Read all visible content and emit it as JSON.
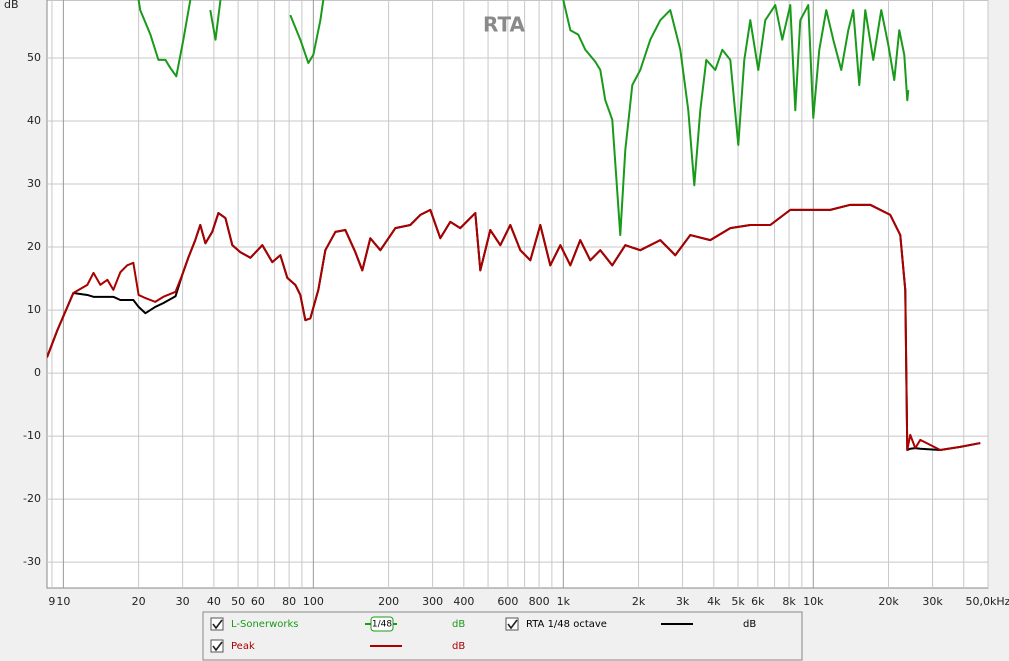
{
  "chart_data": {
    "type": "line",
    "title": "RTA",
    "ylabel": "dB",
    "xscale": "log",
    "grid": true,
    "xlim": [
      8.6,
      50000
    ],
    "ylim": [
      -34.1,
      59.2
    ],
    "yticks": [
      -30,
      -20,
      -10,
      0,
      10,
      20,
      30,
      40,
      50
    ],
    "xticks": [
      9,
      10,
      20,
      30,
      40,
      50,
      60,
      80,
      100,
      200,
      300,
      400,
      600,
      800,
      {
        "value": 1000,
        "label": "1k"
      },
      {
        "value": 2000,
        "label": "2k"
      },
      {
        "value": 3000,
        "label": "3k"
      },
      {
        "value": 4000,
        "label": "4k"
      },
      {
        "value": 5000,
        "label": "5k"
      },
      {
        "value": 6000,
        "label": "6k"
      },
      {
        "value": 8000,
        "label": "8k"
      },
      {
        "value": 10000,
        "label": "10k"
      },
      {
        "value": 20000,
        "label": "20k"
      },
      {
        "value": 30000,
        "label": "30k"
      },
      {
        "value": 50000,
        "label": "50,0kHz"
      }
    ],
    "xgrid_minor": [
      70,
      90,
      500,
      700,
      900,
      7000,
      9000,
      40000
    ],
    "series": [
      {
        "name": "L-Sonerworks",
        "color": "#1a9a1a",
        "smoothing": "1/48",
        "unit": "dB",
        "x": [
          20,
          20.3,
          22.3,
          24,
          25.6,
          26.8,
          28.3,
          30.2,
          32.2,
          36,
          38.7,
          40.6,
          42.5,
          60,
          80.9,
          88.7,
          95.5,
          100,
          106.7,
          109.6,
          500,
          1000,
          1067,
          1148,
          1225,
          1343,
          1406,
          1472,
          1570,
          1690,
          1770,
          1888,
          2032,
          2228,
          2443,
          2679,
          2938,
          3162,
          3342,
          3532,
          3733,
          4055,
          4325,
          4656,
          5012,
          5297,
          5598,
          6026,
          6427,
          7047,
          7516,
          8091,
          8472,
          8872,
          9550,
          10000,
          10568,
          11272,
          12023,
          12942,
          13804,
          14454,
          15276,
          16144,
          17378,
          18707,
          19953,
          21086,
          22080,
          23121,
          23768,
          24000
        ],
        "values": [
          59.2,
          57.6,
          53.7,
          49.7,
          49.7,
          48.4,
          47.1,
          52.9,
          59.2,
          null,
          57.6,
          52.9,
          59.2,
          null,
          56.8,
          52.9,
          49.2,
          50.5,
          56,
          59.2,
          null,
          59.2,
          54.4,
          53.7,
          51.3,
          49.4,
          48.1,
          43.3,
          40.2,
          21.9,
          35.4,
          45.7,
          48.1,
          52.9,
          56,
          57.6,
          51.3,
          41.7,
          29.8,
          41.7,
          49.7,
          48.1,
          51.3,
          49.7,
          36.2,
          49.7,
          56,
          48.1,
          56,
          58.4,
          52.9,
          58.4,
          41.7,
          56,
          58.4,
          40.5,
          51.3,
          57.6,
          52.9,
          48.1,
          54.4,
          57.6,
          45.7,
          57.6,
          49.7,
          57.6,
          52.1,
          46.5,
          54.4,
          50.5,
          43.3,
          44.9
        ]
      },
      {
        "name": "RTA 1/48 octave",
        "color": "#000000",
        "unit": "dB",
        "x": [
          8.6,
          9.46,
          10.96,
          12.47,
          13.2,
          14.06,
          15,
          15.85,
          16.9,
          18,
          19.05,
          20,
          21.3,
          23.3,
          25.1,
          28.1,
          29.9,
          31.6,
          33.7,
          35.3,
          37,
          39.4,
          41.7,
          44.5,
          47.4,
          51,
          56,
          62.5,
          68.5,
          73.8,
          78.7,
          84.7,
          88.7,
          92.9,
          97.3,
          104.7,
          111.7,
          122.5,
          134.3,
          147.2,
          157,
          169,
          185.4,
          212.8,
          244.3,
          267.9,
          293.8,
          322,
          353,
          387,
          444.6,
          465.6,
          510.5,
          559.8,
          613.8,
          673,
          738,
          809,
          887,
          973,
          1067,
          1169,
          1282,
          1406,
          1570,
          1770,
          2032,
          2443,
          2805,
          3221,
          3873,
          4656,
          5598,
          6730,
          8091,
          9727,
          11695,
          14060,
          16904,
          20324,
          22284,
          23335,
          23768,
          24434,
          25586,
          26792,
          32211,
          38726,
          46559
        ],
        "values": [
          2.5,
          6.8,
          12.7,
          12.4,
          12.1,
          12.1,
          12.1,
          12.1,
          11.6,
          11.6,
          11.6,
          10.5,
          9.5,
          10.5,
          11.1,
          12.2,
          15.6,
          18.3,
          21.1,
          23.5,
          20.6,
          22.4,
          25.4,
          24.6,
          20.3,
          19.2,
          18.3,
          20.3,
          17.6,
          18.7,
          15.1,
          14,
          12.4,
          8.4,
          8.7,
          13.2,
          19.5,
          22.4,
          22.7,
          19.2,
          16.3,
          21.4,
          19.5,
          23,
          23.5,
          25.1,
          25.9,
          21.4,
          24,
          23,
          25.4,
          16.3,
          22.7,
          20.3,
          23.5,
          19.5,
          17.9,
          23.5,
          17.1,
          20.3,
          17.1,
          21.1,
          17.9,
          19.5,
          17.1,
          20.3,
          19.5,
          21.1,
          18.7,
          21.9,
          21.1,
          23,
          23.5,
          23.5,
          25.9,
          25.9,
          25.9,
          26.7,
          26.7,
          25.1,
          21.9,
          13.2,
          -12.2,
          -12,
          -11.9,
          -12,
          -12.2,
          -11.7,
          -11.1
        ]
      },
      {
        "name": "Peak",
        "color": "#aa0000",
        "unit": "dB",
        "x": [
          8.6,
          9.46,
          10.96,
          12.47,
          13.2,
          14.06,
          15,
          15.85,
          16.9,
          18,
          19.05,
          20,
          21.3,
          23.3,
          25.1,
          28.1,
          29.9,
          31.6,
          33.7,
          35.3,
          37,
          39.4,
          41.7,
          44.5,
          47.4,
          51,
          56,
          62.5,
          68.5,
          73.8,
          78.7,
          84.7,
          88.7,
          92.9,
          97.3,
          104.7,
          111.7,
          122.5,
          134.3,
          147.2,
          157,
          169,
          185.4,
          212.8,
          244.3,
          267.9,
          293.8,
          322,
          353,
          387,
          444.6,
          465.6,
          510.5,
          559.8,
          613.8,
          673,
          738,
          809,
          887,
          973,
          1067,
          1169,
          1282,
          1406,
          1570,
          1770,
          2032,
          2443,
          2805,
          3221,
          3873,
          4656,
          5598,
          6730,
          8091,
          9727,
          11695,
          14060,
          16904,
          20324,
          22284,
          23335,
          23768,
          24434,
          25586,
          26792,
          32211,
          38726,
          46559
        ],
        "values": [
          2.5,
          6.8,
          12.7,
          14,
          15.9,
          14,
          14.8,
          13.2,
          16,
          17.1,
          17.5,
          12.4,
          11.9,
          11.3,
          12.1,
          12.9,
          15.6,
          18.3,
          21.1,
          23.5,
          20.6,
          22.4,
          25.4,
          24.6,
          20.3,
          19.2,
          18.3,
          20.3,
          17.6,
          18.7,
          15.1,
          14,
          12.4,
          8.4,
          8.7,
          13.2,
          19.5,
          22.4,
          22.7,
          19.2,
          16.3,
          21.4,
          19.5,
          23,
          23.5,
          25.1,
          25.9,
          21.4,
          24,
          23,
          25.4,
          16.3,
          22.7,
          20.3,
          23.5,
          19.5,
          17.9,
          23.5,
          17.1,
          20.3,
          17.1,
          21.1,
          17.9,
          19.5,
          17.1,
          20.3,
          19.5,
          21.1,
          18.7,
          21.9,
          21.1,
          23,
          23.5,
          23.5,
          25.9,
          25.9,
          25.9,
          26.7,
          26.7,
          25.1,
          21.9,
          13.2,
          -12.2,
          -9.8,
          -11.9,
          -10.6,
          -12.2,
          -11.7,
          -11.1
        ]
      }
    ]
  }
}
